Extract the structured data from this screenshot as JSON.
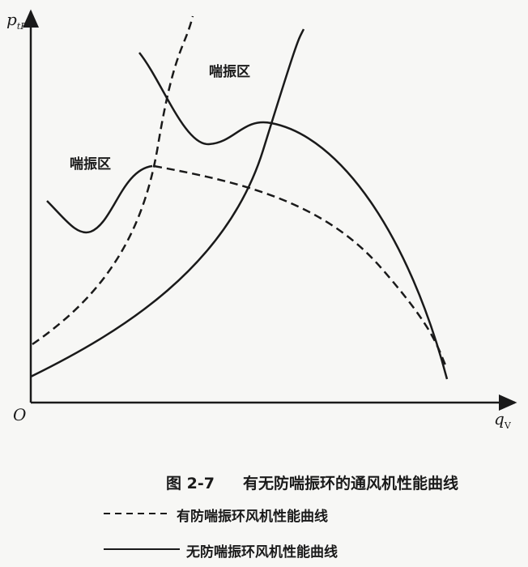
{
  "axes": {
    "y_label": "p",
    "y_sub": "tF",
    "x_label": "q",
    "x_sub": "V",
    "origin": "O"
  },
  "annotations": {
    "surge_zone_upper": "喘振区",
    "surge_zone_lower": "喘振区"
  },
  "caption": {
    "number": "图 2-7",
    "title": "有无防喘振环的通风机性能曲线"
  },
  "legend": [
    {
      "style": "dashed",
      "label": "有防喘振环风机性能曲线"
    },
    {
      "style": "solid",
      "label": "无防喘振环风机性能曲线"
    }
  ],
  "colors": {
    "ink": "#1a1a1a",
    "paper": "#f7f7f5"
  }
}
